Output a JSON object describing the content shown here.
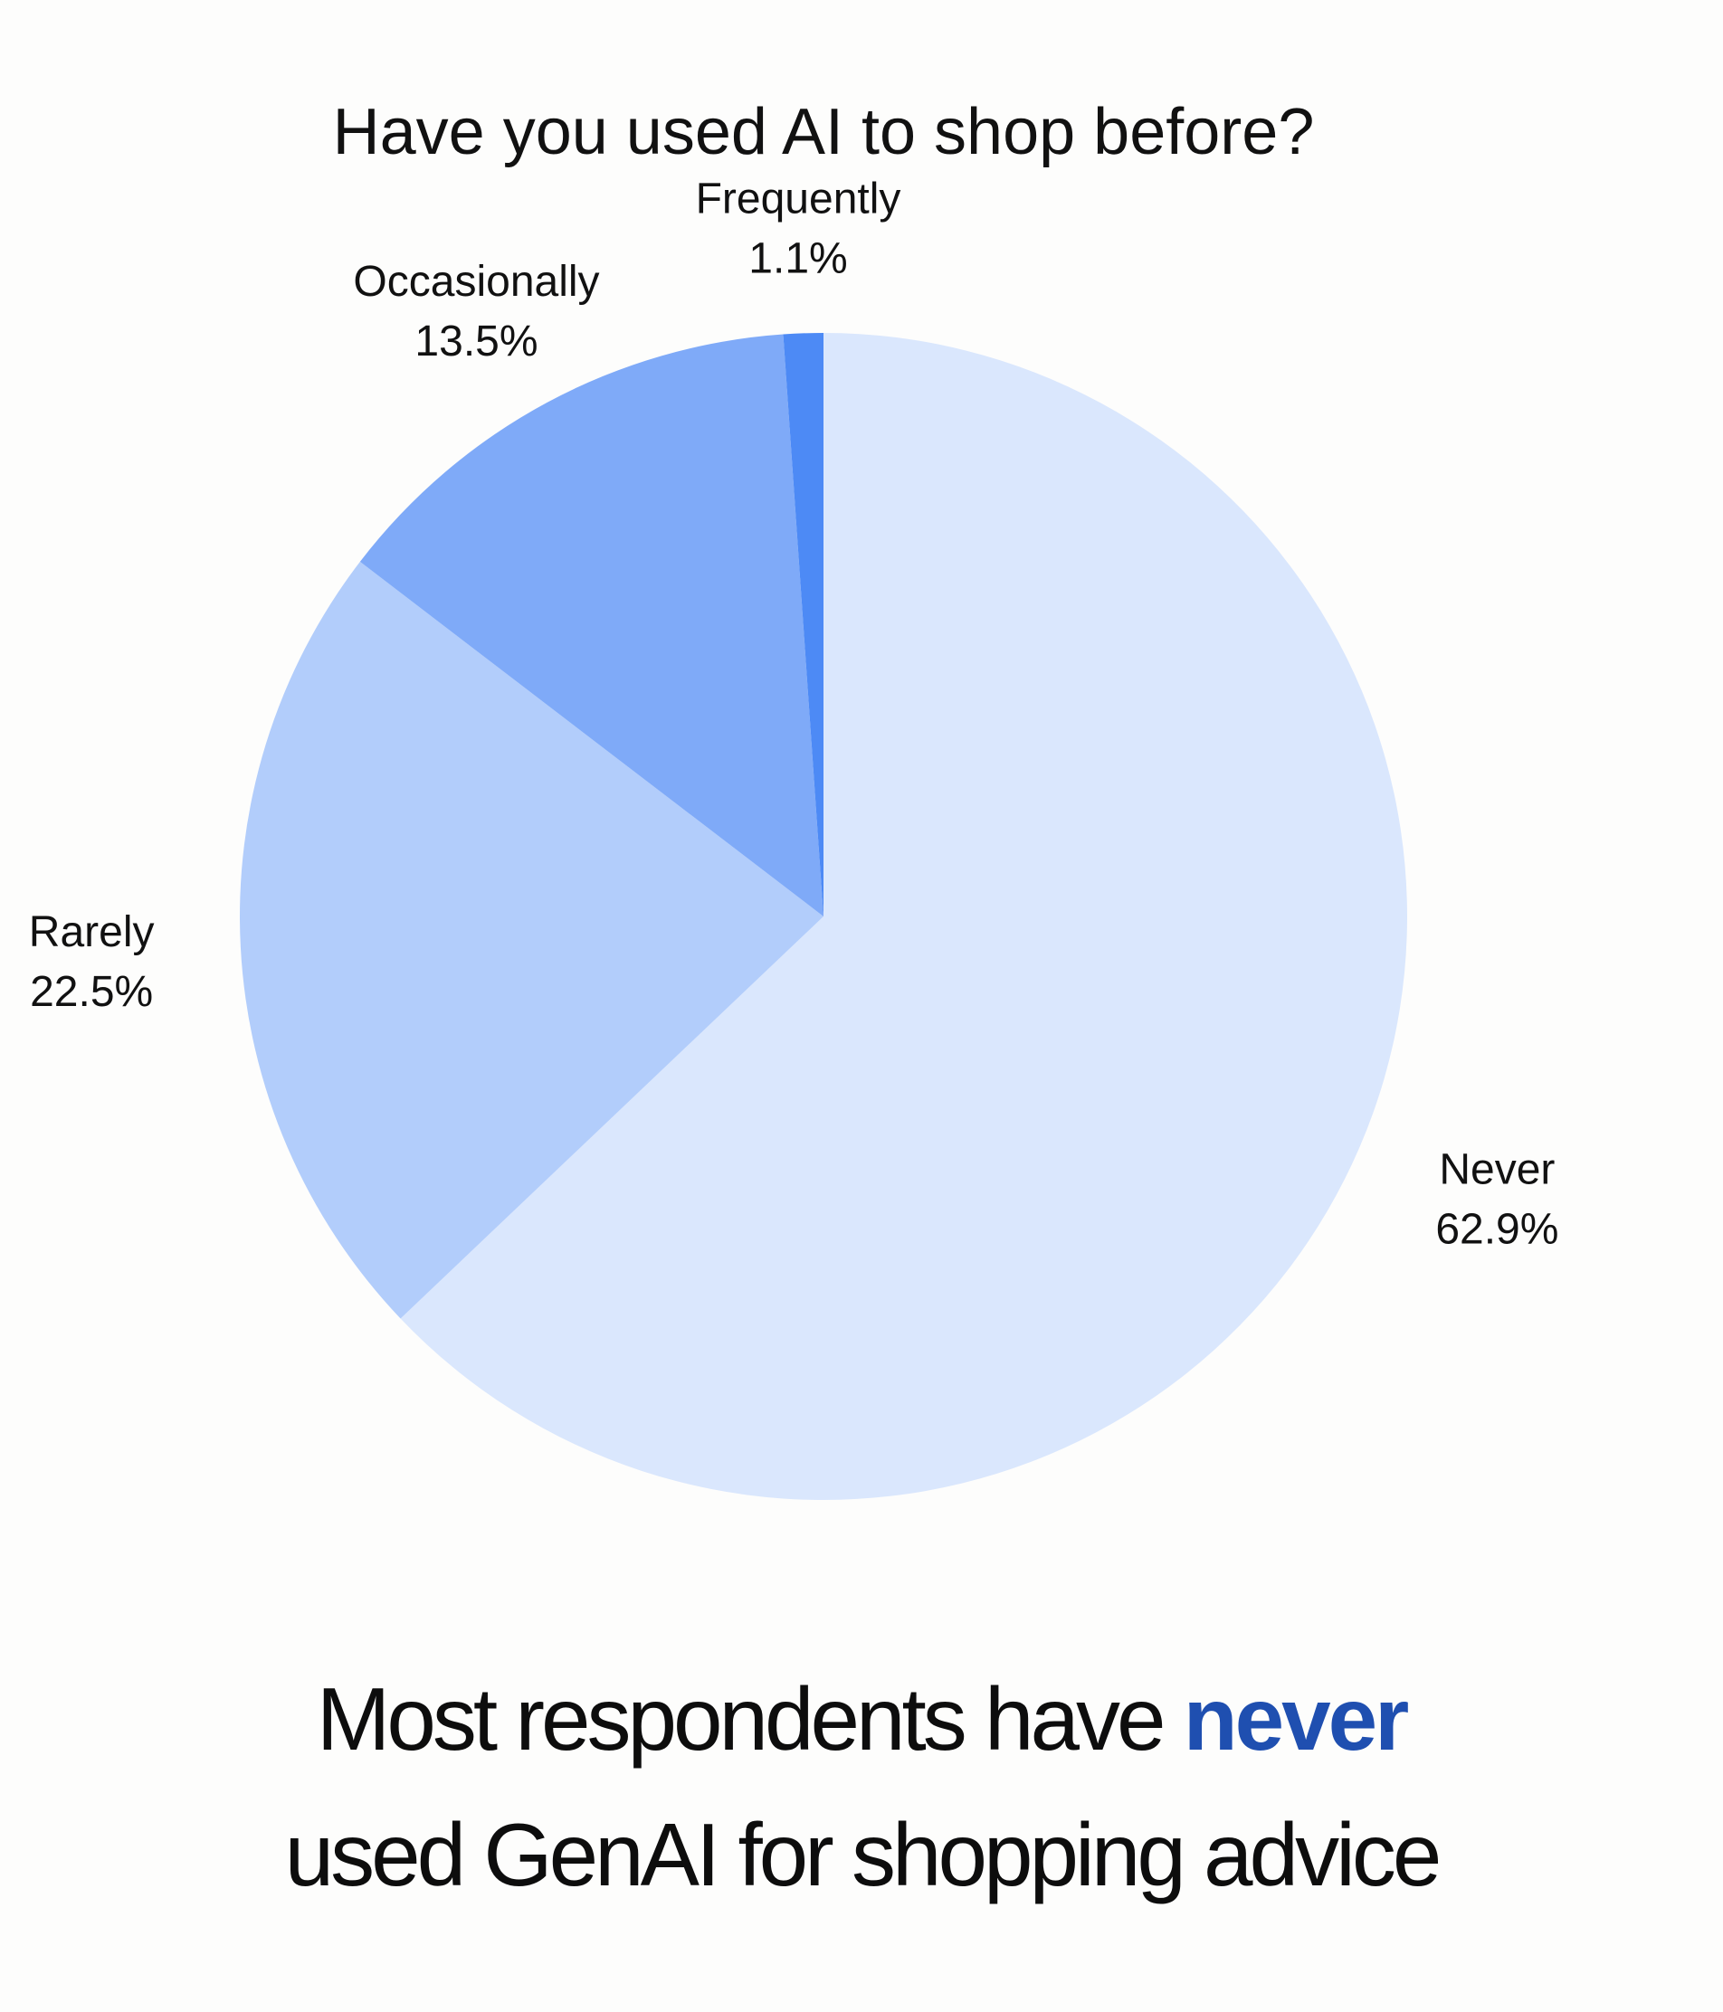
{
  "chart_data": {
    "type": "pie",
    "title": "Have you used AI to shop before?",
    "start_angle_deg": 0,
    "direction": "clockwise",
    "slices": [
      {
        "label": "Never",
        "value": 62.9,
        "value_label": "62.9%",
        "color": "#dae7fd"
      },
      {
        "label": "Rarely",
        "value": 22.5,
        "value_label": "22.5%",
        "color": "#b2cdfb"
      },
      {
        "label": "Occasionally",
        "value": 13.5,
        "value_label": "13.5%",
        "color": "#7faaf8"
      },
      {
        "label": "Frequently",
        "value": 1.1,
        "value_label": "1.1%",
        "color": "#4d8af5"
      }
    ]
  },
  "caption": {
    "line1_before": "Most respondents have ",
    "line1_highlight": "never",
    "line2": "used GenAI for shopping advice"
  },
  "colors": {
    "highlight": "#1f4fb0",
    "background": "#fdfdfc"
  }
}
